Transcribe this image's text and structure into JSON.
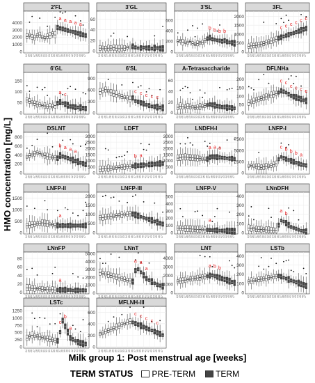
{
  "figure": {
    "y_axis_title": "HMO concentration [mg/L]",
    "x_axis_title": "Milk group 1: Post menstrual age [weeks]",
    "legend_title": "TERM STATUS",
    "legend_items": [
      {
        "label": "PRE-TERM",
        "fill": "#ffffff"
      },
      {
        "label": "TERM",
        "fill": "#444444"
      }
    ],
    "colors": {
      "strip": "#d9d9d9",
      "significance_letter": "#e41a1c",
      "pre_term_box": "#ffffff",
      "term_box": "#444444",
      "grid": "#ebebeb"
    }
  },
  "chart_data": {
    "type": "box",
    "x_ticks": [
      "24",
      "25",
      "26",
      "27",
      "28",
      "29",
      "30",
      "31",
      "32",
      "33",
      "34",
      "35",
      "36",
      "37",
      "38",
      "39",
      "40",
      "41",
      "42",
      "43",
      "44",
      "45",
      "46",
      "47"
    ],
    "panels": [
      {
        "name": "2'FL",
        "yticks": [
          0,
          1000,
          2000,
          3000,
          4000
        ],
        "ylim": [
          -200,
          5600
        ],
        "medians": [
          2100,
          2300,
          2000,
          1900,
          2200,
          2300,
          2000,
          1800,
          2100,
          2200,
          2500,
          2300,
          3300,
          3200,
          3100,
          3000,
          2900,
          2800,
          2700,
          2600,
          2500,
          2400,
          2300,
          2200
        ],
        "letters": [
          "a",
          "a",
          "a",
          "a",
          "a"
        ]
      },
      {
        "name": "3'GL",
        "yticks": [
          0,
          20,
          40,
          60
        ],
        "ylim": [
          -4,
          75
        ],
        "medians": [
          5,
          5,
          4,
          5,
          5,
          6,
          5,
          4,
          5,
          5,
          6,
          7,
          8,
          6,
          5,
          5,
          6,
          5,
          5,
          4,
          5,
          5,
          4,
          4
        ],
        "letters": []
      },
      {
        "name": "3'SL",
        "yticks": [
          0,
          200,
          400,
          600
        ],
        "ylim": [
          -30,
          770
        ],
        "medians": [
          190,
          200,
          170,
          180,
          160,
          190,
          150,
          140,
          150,
          160,
          170,
          200,
          240,
          260,
          230,
          220,
          210,
          200,
          190,
          200,
          180,
          170,
          160,
          150
        ],
        "letters": [
          "b",
          "b",
          "b",
          "b"
        ]
      },
      {
        "name": "3FL",
        "yticks": [
          0,
          500,
          1000,
          1500,
          2000
        ],
        "ylim": [
          -80,
          2300
        ],
        "medians": [
          300,
          320,
          330,
          350,
          380,
          400,
          450,
          500,
          550,
          600,
          650,
          700,
          750,
          800,
          850,
          900,
          950,
          1000,
          1050,
          1100,
          1150,
          1200,
          1250,
          1300
        ],
        "letters": [
          "c",
          "c",
          "c",
          "c",
          "c",
          "c",
          "c"
        ]
      },
      {
        "name": "6'GL",
        "yticks": [
          0,
          50,
          100,
          150
        ],
        "ylim": [
          -6,
          190
        ],
        "medians": [
          60,
          55,
          50,
          45,
          40,
          38,
          35,
          33,
          30,
          30,
          32,
          35,
          45,
          50,
          45,
          40,
          35,
          30,
          28,
          26,
          25,
          24,
          22,
          20
        ],
        "letters": [
          "a",
          "c"
        ]
      },
      {
        "name": "6'SL",
        "yticks": [
          0,
          300,
          600,
          900
        ],
        "ylim": [
          -40,
          1050
        ],
        "medians": [
          550,
          580,
          600,
          560,
          520,
          500,
          480,
          450,
          420,
          400,
          380,
          350,
          380,
          300,
          280,
          250,
          230,
          200,
          180,
          160,
          150,
          140,
          130,
          120
        ],
        "letters": [
          "c",
          "c",
          "c",
          "c",
          "c"
        ]
      },
      {
        "name": "A-Tetrasaccharide",
        "yticks": [
          0,
          20,
          40,
          60
        ],
        "ylim": [
          -3,
          75
        ],
        "medians": [
          10,
          12,
          11,
          10,
          12,
          11,
          10,
          9,
          10,
          11,
          12,
          13,
          14,
          15,
          14,
          13,
          12,
          11,
          10,
          10,
          9,
          9,
          8,
          8
        ],
        "letters": []
      },
      {
        "name": "DFLNHa",
        "yticks": [
          0,
          50,
          100,
          150,
          200
        ],
        "ylim": [
          -8,
          240
        ],
        "medians": [
          60,
          65,
          70,
          75,
          80,
          85,
          90,
          95,
          100,
          105,
          110,
          115,
          120,
          130,
          125,
          120,
          110,
          100,
          95,
          90,
          85,
          80,
          75,
          70
        ],
        "letters": [
          "c",
          "c",
          "c",
          "c",
          "c",
          "c",
          "c",
          "c"
        ]
      },
      {
        "name": "DSLNT",
        "yticks": [
          0,
          200,
          400,
          600,
          800
        ],
        "ylim": [
          -30,
          900
        ],
        "medians": [
          350,
          380,
          400,
          420,
          450,
          430,
          400,
          380,
          360,
          350,
          340,
          330,
          320,
          380,
          360,
          340,
          320,
          300,
          280,
          260,
          240,
          220,
          200,
          180
        ],
        "letters": [
          "b",
          "a",
          "a",
          "a"
        ]
      },
      {
        "name": "LDFT",
        "yticks": [
          0,
          500,
          1000,
          1500,
          2000,
          2500,
          3000
        ],
        "ylim": [
          -100,
          3300
        ],
        "medians": [
          300,
          320,
          340,
          360,
          380,
          400,
          420,
          440,
          460,
          480,
          500,
          520,
          540,
          560,
          580,
          600,
          620,
          640,
          660,
          680,
          700,
          720,
          740,
          760
        ],
        "letters": [
          "b",
          "a"
        ]
      },
      {
        "name": "LNDFH-I",
        "yticks": [
          0,
          500,
          1000,
          1500,
          2000,
          2500,
          3000
        ],
        "ylim": [
          -100,
          3300
        ],
        "medians": [
          1200,
          1250,
          1300,
          1280,
          1260,
          1240,
          1220,
          1200,
          1180,
          1160,
          1140,
          1120,
          1100,
          1250,
          1300,
          1280,
          1260,
          1240,
          1220,
          1200,
          1180,
          1160,
          1140,
          1120
        ],
        "letters": [
          "a",
          "a",
          "a"
        ]
      },
      {
        "name": "LNFP-I",
        "yticks": [
          0,
          2500,
          5000,
          7500
        ],
        "ylim": [
          -300,
          9000
        ],
        "medians": [
          1500,
          1600,
          1500,
          1400,
          1300,
          1200,
          1300,
          1400,
          1500,
          1600,
          1800,
          2000,
          3000,
          3500,
          3200,
          3000,
          2800,
          2600,
          2400,
          2200,
          2000,
          1800,
          1700,
          1600
        ],
        "letters": [
          "c",
          "b",
          "b",
          "b",
          "a"
        ]
      },
      {
        "name": "LNFP-II",
        "yticks": [
          0,
          500,
          1000,
          1500
        ],
        "ylim": [
          -60,
          1750
        ],
        "medians": [
          300,
          320,
          340,
          360,
          380,
          400,
          420,
          400,
          380,
          360,
          340,
          320,
          300,
          300,
          300,
          300,
          300,
          300,
          300,
          300,
          300,
          300,
          300,
          300
        ],
        "letters": [
          "a"
        ]
      },
      {
        "name": "LNFP-III",
        "yticks": [
          0,
          500,
          1000,
          1500,
          2000
        ],
        "ylim": [
          -80,
          2200
        ],
        "medians": [
          800,
          820,
          840,
          860,
          880,
          900,
          920,
          940,
          960,
          980,
          1000,
          1020,
          1000,
          950,
          900,
          850,
          800,
          750,
          700,
          650,
          600,
          550,
          500,
          450
        ],
        "letters": []
      },
      {
        "name": "LNFP-V",
        "yticks": [
          0,
          100,
          200,
          300,
          400,
          500
        ],
        "ylim": [
          -20,
          560
        ],
        "medians": [
          60,
          58,
          56,
          54,
          52,
          50,
          48,
          46,
          44,
          42,
          40,
          38,
          36,
          34,
          32,
          30,
          28,
          26,
          24,
          22,
          20,
          18,
          16,
          14
        ],
        "letters": [
          "a"
        ]
      },
      {
        "name": "LNnDFH",
        "yticks": [
          0,
          100,
          200,
          300,
          400
        ],
        "ylim": [
          -15,
          440
        ],
        "medians": [
          50,
          45,
          40,
          38,
          36,
          34,
          32,
          30,
          28,
          26,
          24,
          22,
          80,
          130,
          120,
          100,
          80,
          60,
          50,
          40,
          30,
          20,
          15,
          10
        ],
        "letters": [
          "a",
          "b"
        ]
      },
      {
        "name": "LNnFP",
        "yticks": [
          0,
          20,
          40,
          60,
          80
        ],
        "ylim": [
          -4,
          95
        ],
        "medians": [
          10,
          10,
          9,
          9,
          8,
          8,
          7,
          7,
          6,
          6,
          6,
          5,
          5,
          5,
          5,
          5,
          5,
          5,
          4,
          4,
          4,
          4,
          4,
          4
        ],
        "letters": [
          "a"
        ]
      },
      {
        "name": "LNnT",
        "yticks": [
          0,
          1000,
          2000,
          3000,
          4000,
          5000
        ],
        "ylim": [
          -150,
          5200
        ],
        "medians": [
          2600,
          2500,
          2400,
          2300,
          2200,
          2100,
          2000,
          1900,
          1800,
          1700,
          1600,
          1500,
          1400,
          2800,
          3000,
          2600,
          2200,
          1800,
          1600,
          1400,
          1200,
          1000,
          900,
          800
        ],
        "letters": [
          "a",
          "a",
          "a"
        ]
      },
      {
        "name": "LNT",
        "yticks": [
          0,
          1000,
          2000,
          3000,
          4000
        ],
        "ylim": [
          -150,
          4700
        ],
        "medians": [
          1300,
          1350,
          1400,
          1450,
          1500,
          1550,
          1600,
          1650,
          1700,
          1750,
          1800,
          1850,
          1900,
          1950,
          2000,
          1900,
          1800,
          1700,
          1600,
          1500,
          1400,
          1300,
          1200,
          1100
        ],
        "letters": [
          "a",
          "b",
          "b"
        ]
      },
      {
        "name": "LSTb",
        "yticks": [
          0,
          100,
          200,
          300,
          400
        ],
        "ylim": [
          -15,
          440
        ],
        "medians": [
          120,
          125,
          130,
          135,
          140,
          145,
          150,
          155,
          160,
          165,
          170,
          175,
          180,
          170,
          160,
          150,
          140,
          130,
          120,
          110,
          100,
          90,
          80,
          70
        ],
        "letters": []
      },
      {
        "name": "LSTc",
        "yticks": [
          0,
          250,
          500,
          750,
          1000,
          1250
        ],
        "ylim": [
          -50,
          1400
        ],
        "medians": [
          300,
          350,
          400,
          380,
          360,
          340,
          320,
          300,
          280,
          260,
          240,
          220,
          200,
          500,
          900,
          700,
          500,
          300,
          250,
          200,
          150,
          120,
          100,
          90
        ],
        "letters": [
          "c",
          "b",
          "a"
        ]
      },
      {
        "name": "MFLNH-III",
        "yticks": [
          0,
          200,
          400,
          600
        ],
        "ylim": [
          -25,
          700
        ],
        "medians": [
          220,
          240,
          260,
          280,
          300,
          320,
          340,
          360,
          380,
          400,
          420,
          440,
          420,
          400,
          380,
          360,
          340,
          320,
          300,
          280,
          260,
          240,
          220,
          200
        ],
        "letters": [
          "c",
          "c",
          "c",
          "c",
          "c"
        ]
      }
    ]
  }
}
